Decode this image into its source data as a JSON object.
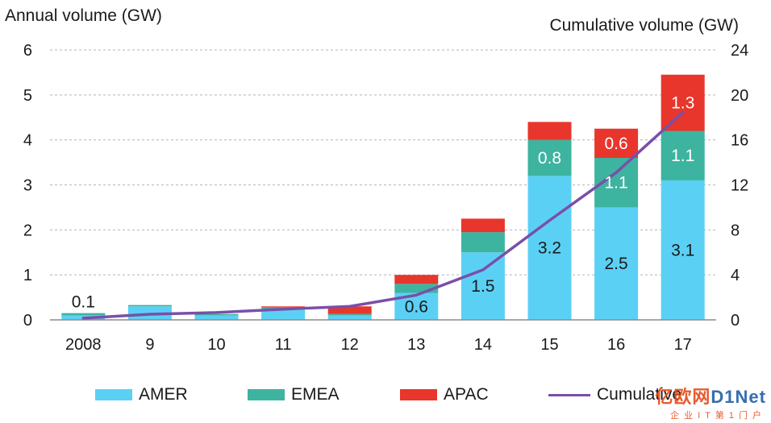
{
  "chart_data": {
    "type": "bar",
    "stacked": true,
    "categories": [
      "2008",
      "9",
      "10",
      "11",
      "12",
      "13",
      "14",
      "15",
      "16",
      "17"
    ],
    "series": [
      {
        "name": "AMER",
        "color": "#5bd0f5",
        "axis": "left",
        "values": [
          0.1,
          0.3,
          0.1,
          0.25,
          0.1,
          0.6,
          1.5,
          3.2,
          2.5,
          3.1
        ]
      },
      {
        "name": "EMEA",
        "color": "#3db4a0",
        "axis": "left",
        "values": [
          0.05,
          0.03,
          0.03,
          0.03,
          0.03,
          0.2,
          0.45,
          0.8,
          1.1,
          1.1
        ]
      },
      {
        "name": "APAC",
        "color": "#e8362c",
        "axis": "left",
        "values": [
          0.0,
          0.0,
          0.0,
          0.02,
          0.17,
          0.2,
          0.3,
          0.4,
          0.65,
          1.25
        ]
      },
      {
        "name": "Cumulative",
        "type": "line",
        "color": "#7a4fa8",
        "axis": "right",
        "values": [
          0.15,
          0.5,
          0.65,
          0.95,
          1.2,
          2.2,
          4.45,
          8.85,
          13.1,
          18.45
        ]
      }
    ],
    "data_labels": [
      {
        "category": "2008",
        "series": "AMER",
        "text": "0.1",
        "position": "above",
        "color": "#1a1a1a"
      },
      {
        "category": "13",
        "series": "AMER",
        "text": "0.6",
        "color": "#1a1a1a"
      },
      {
        "category": "14",
        "series": "AMER",
        "text": "1.5",
        "color": "#1a1a1a"
      },
      {
        "category": "15",
        "series": "AMER",
        "text": "3.2",
        "color": "#1a1a1a"
      },
      {
        "category": "16",
        "series": "AMER",
        "text": "2.5",
        "color": "#1a1a1a"
      },
      {
        "category": "17",
        "series": "AMER",
        "text": "3.1",
        "color": "#1a1a1a"
      },
      {
        "category": "15",
        "series": "EMEA",
        "text": "0.8",
        "color": "#ffffff"
      },
      {
        "category": "16",
        "series": "EMEA",
        "text": "1.1",
        "color": "#ffffff"
      },
      {
        "category": "17",
        "series": "EMEA",
        "text": "1.1",
        "color": "#ffffff"
      },
      {
        "category": "16",
        "series": "APAC",
        "text": "0.6",
        "color": "#ffffff"
      },
      {
        "category": "17",
        "series": "APAC",
        "text": "1.3",
        "color": "#ffffff"
      }
    ],
    "ylabel": "Annual volume  (GW)",
    "ylabel_right": "Cumulative  volume  (GW)",
    "ylim": [
      0,
      6
    ],
    "yticks": [
      "0",
      "1",
      "2",
      "3",
      "4",
      "5",
      "6"
    ],
    "ylim_right": [
      0,
      24
    ],
    "yticks_right": [
      "0",
      "4",
      "8",
      "12",
      "16",
      "20",
      "24"
    ],
    "grid": true,
    "legend_position": "bottom"
  },
  "watermark": {
    "main_a": "亿欧网",
    "main_b": "D1Net",
    "sub": "企业IT第1门户"
  }
}
